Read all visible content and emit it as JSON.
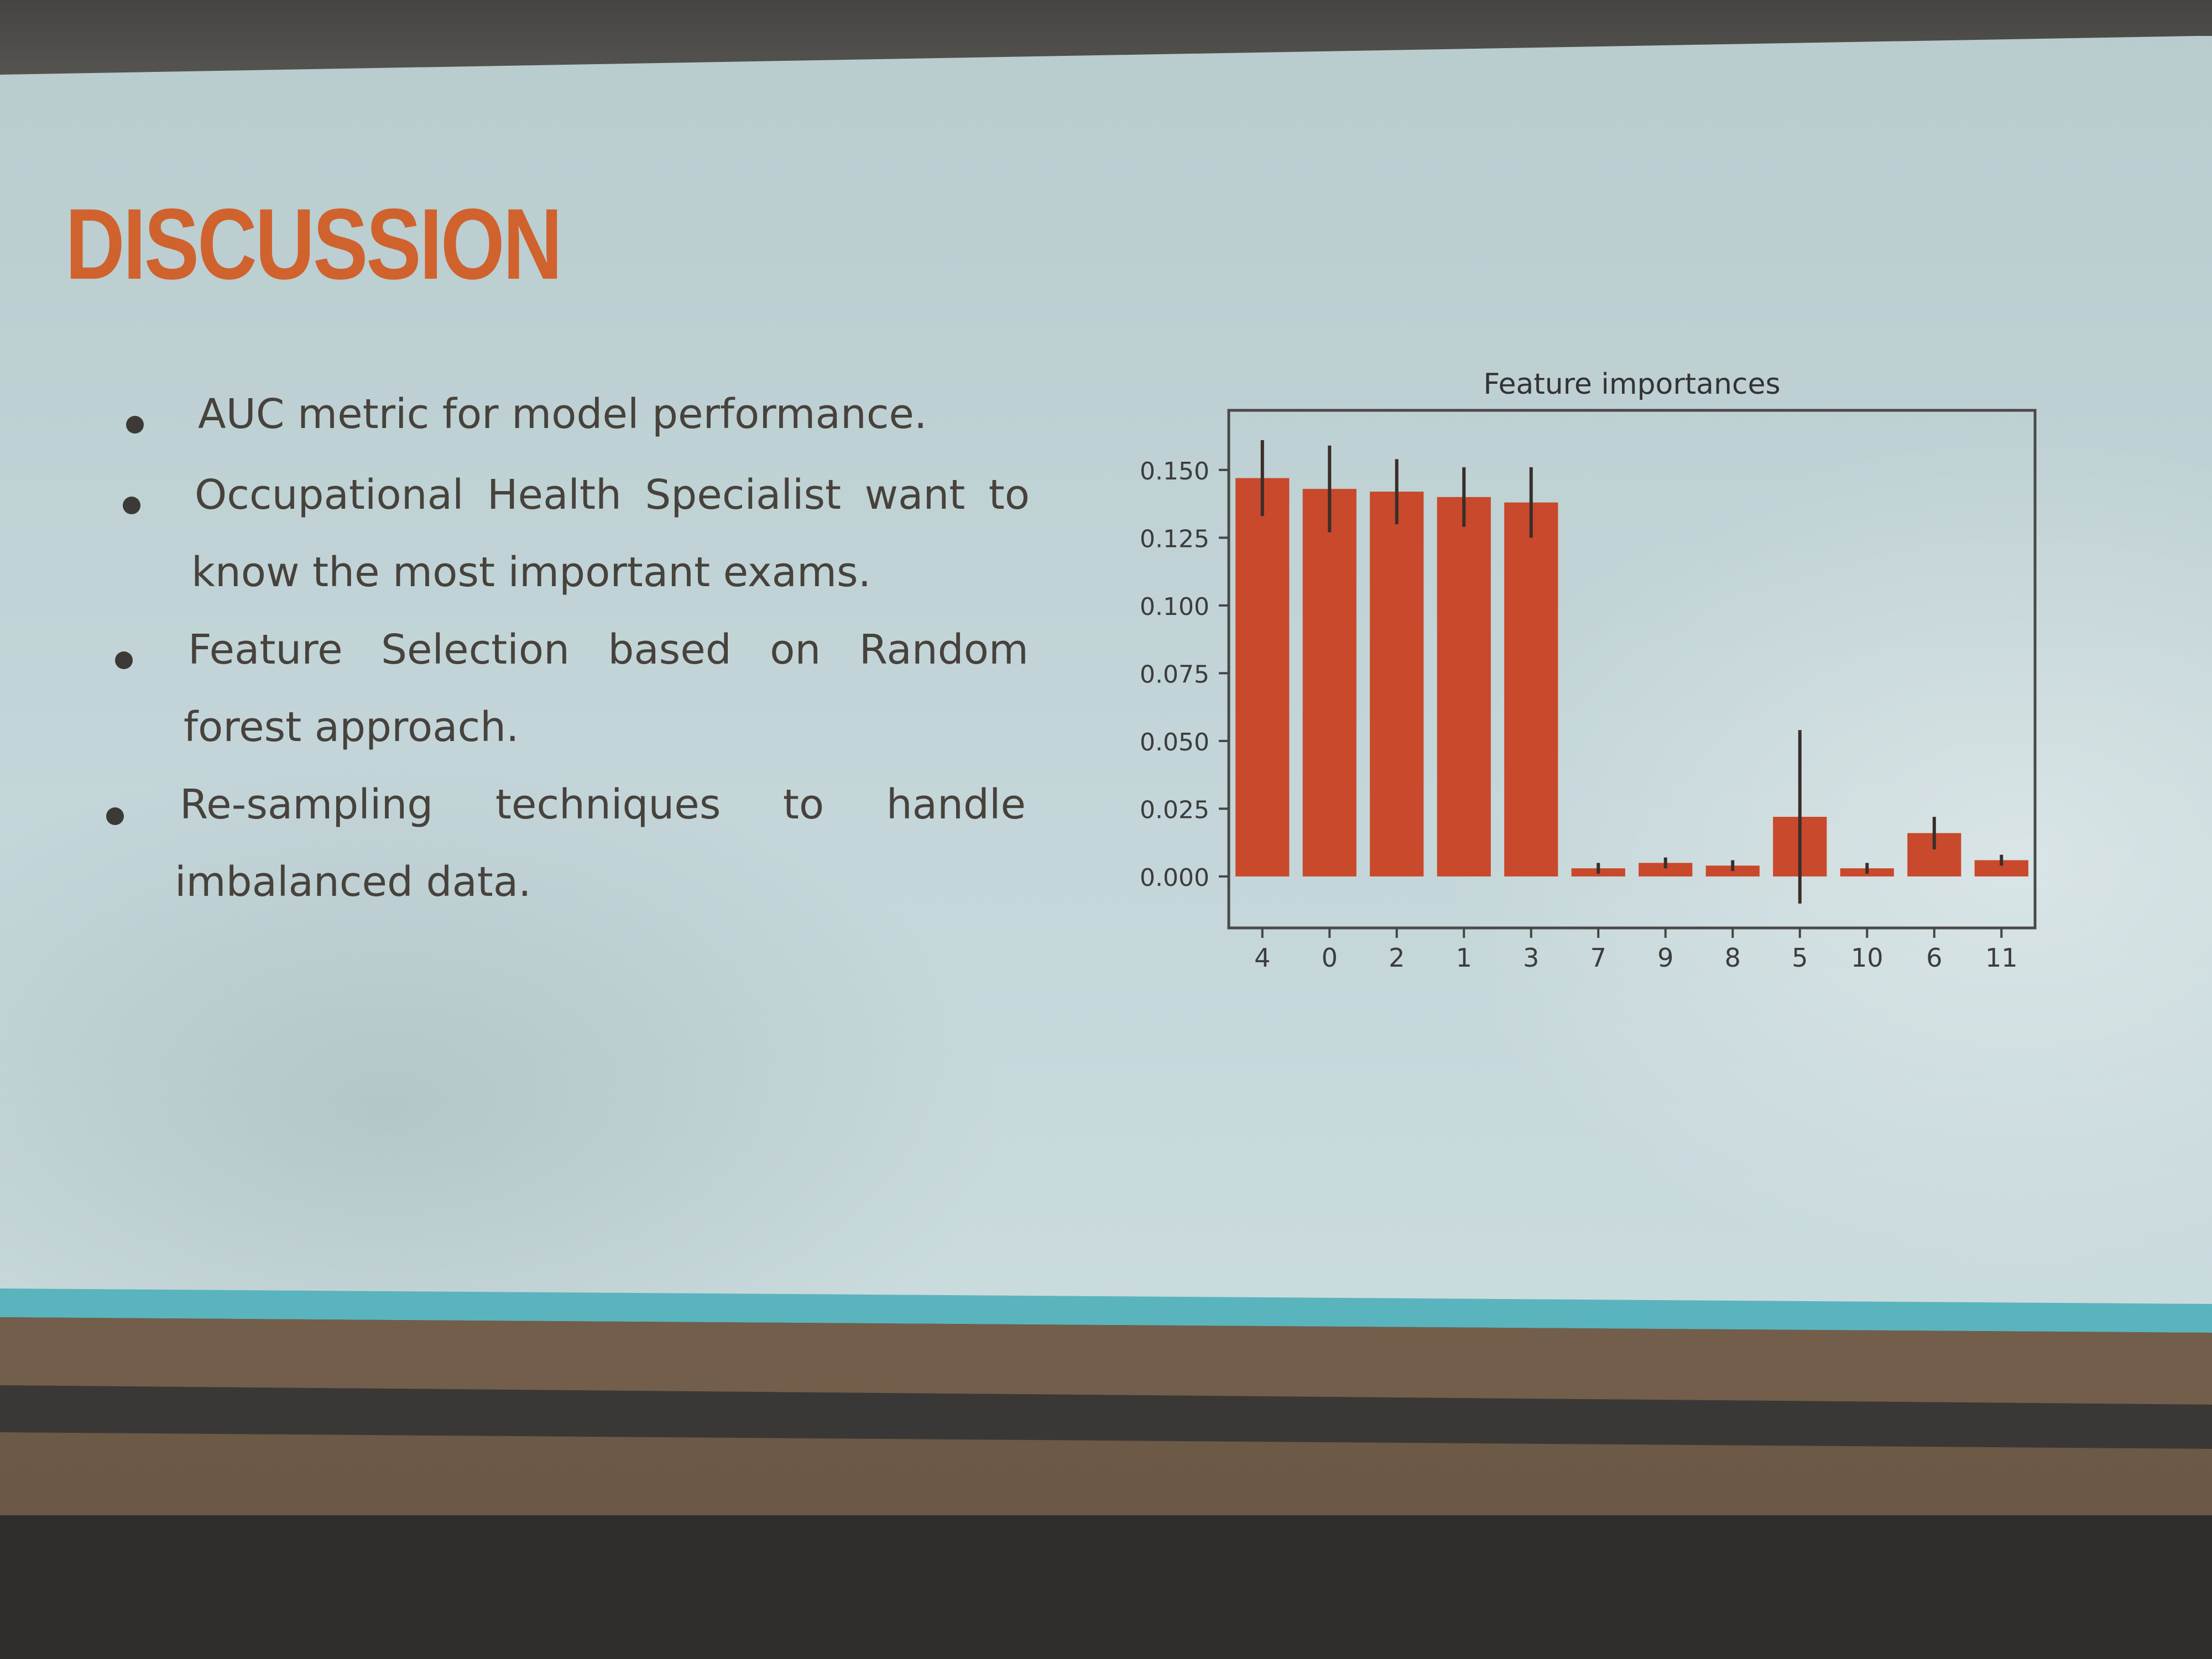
{
  "slide": {
    "title": "DISCUSSION",
    "bullets": [
      {
        "lines": [
          "AUC metric for model performance."
        ]
      },
      {
        "lines": [
          "Occupational Health Specialist want to",
          "know the most important exams."
        ]
      },
      {
        "lines": [
          "Feature Selection based on Random",
          "forest approach."
        ]
      },
      {
        "lines": [
          "Re-sampling techniques to handle",
          "imbalanced data."
        ]
      }
    ]
  },
  "colors": {
    "title": "#d0622e",
    "bar": "#c8492b",
    "screen_background": "#c3d5d8",
    "footer_stripe": "#5ab4bd",
    "body_text": "#47423c"
  },
  "chart_data": {
    "type": "bar",
    "title": "Feature importances",
    "xlabel": "",
    "ylabel": "",
    "categories": [
      "4",
      "0",
      "2",
      "1",
      "3",
      "7",
      "9",
      "8",
      "5",
      "10",
      "6",
      "11"
    ],
    "values": [
      0.147,
      0.143,
      0.142,
      0.14,
      0.138,
      0.003,
      0.005,
      0.004,
      0.022,
      0.003,
      0.016,
      0.006
    ],
    "errors": [
      0.014,
      0.016,
      0.012,
      0.011,
      0.013,
      0.002,
      0.002,
      0.002,
      0.032,
      0.002,
      0.006,
      0.002
    ],
    "yticks": [
      "0.000",
      "0.025",
      "0.050",
      "0.075",
      "0.100",
      "0.125",
      "0.150"
    ],
    "ylim": [
      -0.019,
      0.172
    ],
    "grid": false,
    "legend": "none"
  }
}
